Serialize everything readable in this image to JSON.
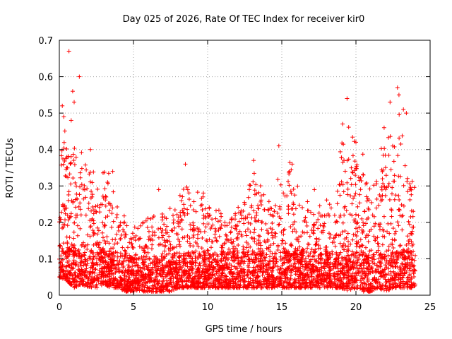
{
  "chart_data": {
    "type": "scatter",
    "title": "Day 025 of 2026, Rate Of TEC Index for receiver kir0",
    "xlabel": "GPS time / hours",
    "ylabel": "ROTI / TECUs",
    "xlim": [
      0,
      25
    ],
    "ylim": [
      0,
      0.7
    ],
    "x_ticks": [
      0,
      5,
      10,
      15,
      20,
      25
    ],
    "y_ticks": [
      0,
      0.1,
      0.2,
      0.3,
      0.4,
      0.5,
      0.6,
      0.7
    ],
    "x_tick_labels": [
      "0",
      "5",
      "10",
      "15",
      "20",
      "25"
    ],
    "y_tick_labels": [
      "0",
      "0.1",
      "0.2",
      "0.3",
      "0.4",
      "0.5",
      "0.6",
      "0.7"
    ],
    "grid": true,
    "marker": "+",
    "color": "#ff0000",
    "x_data_range": [
      0,
      24
    ],
    "series": [
      {
        "name": "ROTI",
        "envelope_hours": [
          0,
          0.5,
          1,
          1.5,
          2,
          2.5,
          3,
          3.5,
          4,
          4.5,
          5,
          5.5,
          6,
          6.5,
          7,
          7.5,
          8,
          8.5,
          9,
          9.5,
          10,
          10.5,
          11,
          11.5,
          12,
          12.5,
          13,
          13.5,
          14,
          14.5,
          15,
          15.5,
          16,
          16.5,
          17,
          17.5,
          18,
          18.5,
          19,
          19.5,
          20,
          20.5,
          21,
          21.5,
          22,
          22.5,
          23,
          23.5,
          24
        ],
        "envelope_upper": [
          0.42,
          0.46,
          0.4,
          0.38,
          0.34,
          0.31,
          0.33,
          0.32,
          0.26,
          0.2,
          0.18,
          0.2,
          0.21,
          0.23,
          0.24,
          0.22,
          0.26,
          0.33,
          0.28,
          0.27,
          0.26,
          0.25,
          0.23,
          0.22,
          0.25,
          0.28,
          0.35,
          0.3,
          0.28,
          0.26,
          0.36,
          0.38,
          0.31,
          0.26,
          0.24,
          0.25,
          0.26,
          0.28,
          0.38,
          0.47,
          0.4,
          0.38,
          0.3,
          0.36,
          0.45,
          0.42,
          0.47,
          0.36,
          0.3
        ],
        "envelope_lower": [
          0.05,
          0.04,
          0.02,
          0.03,
          0.02,
          0.02,
          0.03,
          0.02,
          0.02,
          0.01,
          0.01,
          0.01,
          0.01,
          0.01,
          0.01,
          0.01,
          0.02,
          0.02,
          0.02,
          0.02,
          0.02,
          0.02,
          0.02,
          0.02,
          0.02,
          0.02,
          0.02,
          0.02,
          0.02,
          0.02,
          0.02,
          0.02,
          0.02,
          0.02,
          0.02,
          0.02,
          0.02,
          0.02,
          0.02,
          0.01,
          0.02,
          0.01,
          0.01,
          0.02,
          0.01,
          0.02,
          0.02,
          0.02,
          0.02
        ],
        "outliers": [
          {
            "x": 0.65,
            "y": 0.67
          },
          {
            "x": 1.35,
            "y": 0.6
          },
          {
            "x": 0.9,
            "y": 0.56
          },
          {
            "x": 1.0,
            "y": 0.53
          },
          {
            "x": 0.2,
            "y": 0.52
          },
          {
            "x": 0.3,
            "y": 0.49
          },
          {
            "x": 0.8,
            "y": 0.48
          },
          {
            "x": 2.1,
            "y": 0.4
          },
          {
            "x": 3.6,
            "y": 0.34
          },
          {
            "x": 6.7,
            "y": 0.29
          },
          {
            "x": 8.5,
            "y": 0.36
          },
          {
            "x": 13.1,
            "y": 0.37
          },
          {
            "x": 14.8,
            "y": 0.41
          },
          {
            "x": 15.7,
            "y": 0.36
          },
          {
            "x": 17.2,
            "y": 0.29
          },
          {
            "x": 19.4,
            "y": 0.54
          },
          {
            "x": 19.1,
            "y": 0.47
          },
          {
            "x": 20.0,
            "y": 0.42
          },
          {
            "x": 22.3,
            "y": 0.53
          },
          {
            "x": 22.8,
            "y": 0.57
          },
          {
            "x": 22.9,
            "y": 0.55
          },
          {
            "x": 23.2,
            "y": 0.51
          },
          {
            "x": 23.4,
            "y": 0.5
          },
          {
            "x": 21.9,
            "y": 0.46
          },
          {
            "x": 20.5,
            "y": 0.33
          }
        ]
      }
    ]
  }
}
